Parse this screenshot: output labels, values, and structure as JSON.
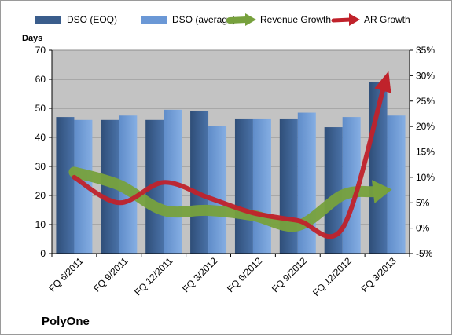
{
  "chart_data": {
    "type": "bar",
    "categories": [
      "FQ 6/2011",
      "FQ 9/2011",
      "FQ 12/2011",
      "FQ 3/2012",
      "FQ 6/2012",
      "FQ 9/2012",
      "FQ 12/2012",
      "FQ 3/2013"
    ],
    "series": [
      {
        "name": "DSO (EOQ)",
        "kind": "bar",
        "axis": "left",
        "color": "#3a5d8c",
        "values": [
          47,
          46,
          46,
          49,
          46.5,
          46.5,
          43.5,
          59
        ]
      },
      {
        "name": "DSO (average)",
        "kind": "bar",
        "axis": "left",
        "color": "#6b98d6",
        "values": [
          46,
          47.5,
          49.5,
          44,
          46.5,
          48.5,
          47,
          47.5
        ]
      },
      {
        "name": "Revenue Growth",
        "kind": "arrow",
        "axis": "right",
        "color": "#77a13d",
        "values": [
          11,
          8.5,
          3.5,
          3.5,
          2.5,
          0.5,
          6.5,
          7.5
        ]
      },
      {
        "name": "AR Growth",
        "kind": "arrow",
        "axis": "right",
        "color": "#c0222b",
        "values": [
          10,
          5,
          9,
          6,
          3,
          1.5,
          0,
          30
        ]
      }
    ],
    "ylabel": "Days",
    "ylim": [
      0,
      70
    ],
    "y_ticks": [
      "0",
      "10",
      "20",
      "30",
      "40",
      "50",
      "60",
      "70"
    ],
    "y2lim": [
      -5,
      35
    ],
    "y2_ticks": [
      "-5%",
      "0%",
      "5%",
      "10%",
      "15%",
      "20%",
      "25%",
      "30%",
      "35%"
    ],
    "grid": true,
    "legend_position": "top",
    "company": "PolyOne"
  }
}
